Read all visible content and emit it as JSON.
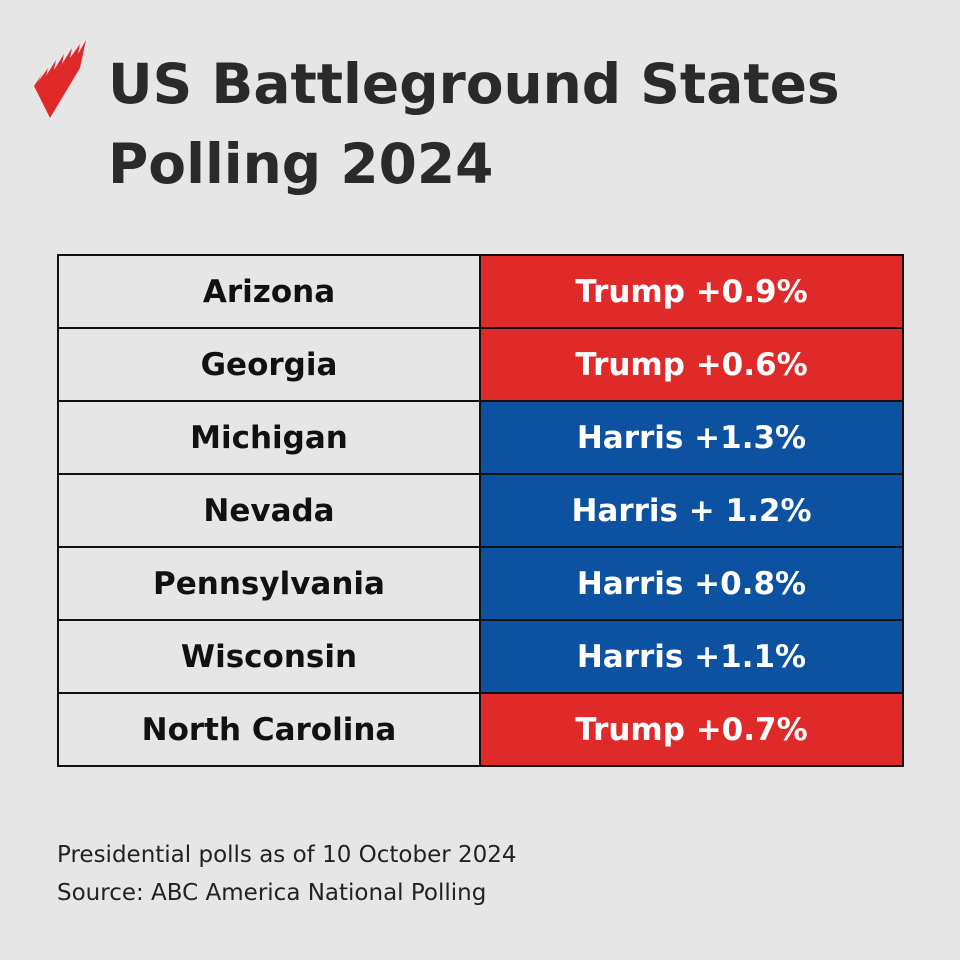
{
  "title": {
    "line1": "US Battleground States",
    "line2": "Polling 2024"
  },
  "logo": {
    "icon": "sbs-logo-red-flame",
    "color": "#e02a2a"
  },
  "colors": {
    "trump": "#e02a2a",
    "harris": "#0d52a0"
  },
  "rows": [
    {
      "state": "Arizona",
      "result": "Trump +0.9%",
      "party": "trump"
    },
    {
      "state": "Georgia",
      "result": "Trump +0.6%",
      "party": "trump"
    },
    {
      "state": "Michigan",
      "result": "Harris +1.3%",
      "party": "harris"
    },
    {
      "state": "Nevada",
      "result": "Harris + 1.2%",
      "party": "harris"
    },
    {
      "state": "Pennsylvania",
      "result": "Harris +0.8%",
      "party": "harris"
    },
    {
      "state": "Wisconsin",
      "result": "Harris +1.1%",
      "party": "harris"
    },
    {
      "state": "North Carolina",
      "result": "Trump +0.7%",
      "party": "trump"
    }
  ],
  "footer": {
    "note": "Presidential polls as of 10 October 2024",
    "source": "Source: ABC America National Polling"
  }
}
